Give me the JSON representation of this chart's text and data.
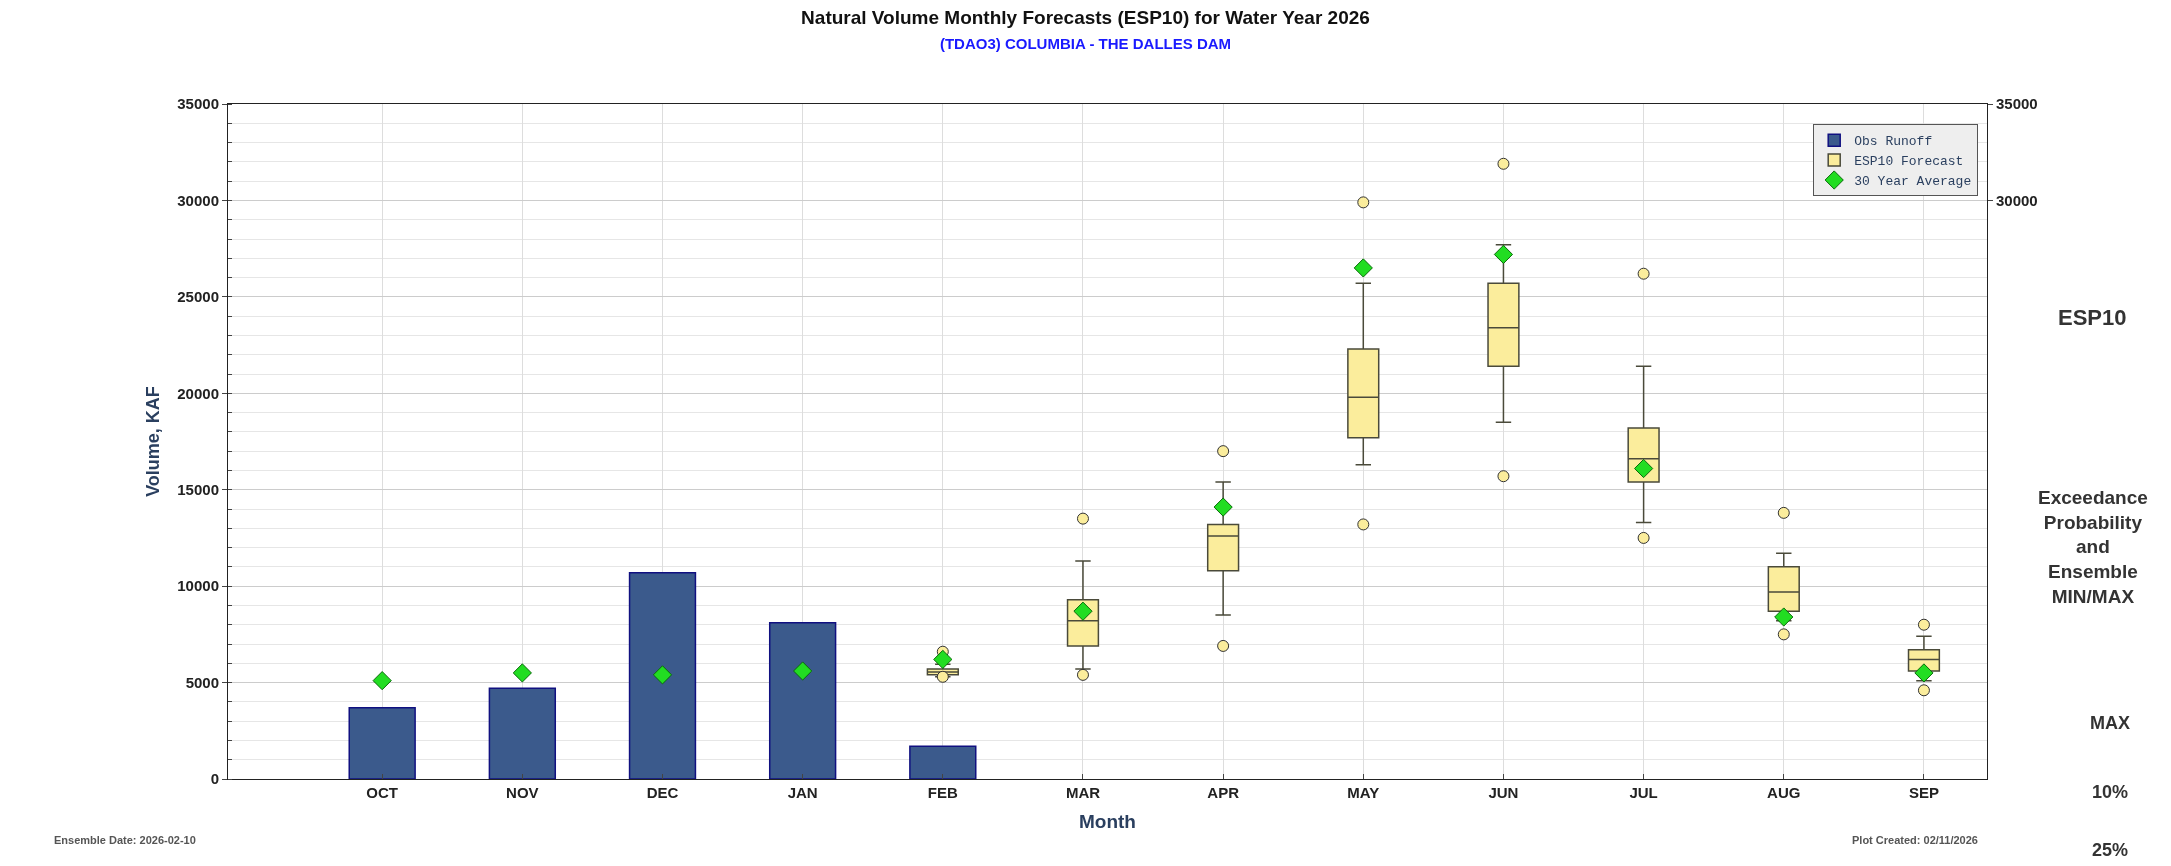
{
  "chart_data": {
    "type": "bar",
    "title": "Natural Volume Monthly Forecasts (ESP10) for Water Year 2026",
    "subtitle": "(TDAO3) COLUMBIA - THE DALLES DAM",
    "xlabel": "Month",
    "ylabel": "Volume, KAF",
    "categories": [
      "OCT",
      "NOV",
      "DEC",
      "JAN",
      "FEB",
      "MAR",
      "APR",
      "MAY",
      "JUN",
      "JUL",
      "AUG",
      "SEP"
    ],
    "series": [
      {
        "name": "Obs Runoff",
        "color": "#3b5a8c",
        "values": [
          3700,
          4700,
          10700,
          8100,
          1700,
          null,
          null,
          null,
          null,
          null,
          null,
          null
        ]
      },
      {
        "name": "ESP10 Forecast",
        "type": "box",
        "color": "#fbed9c",
        "boxes": [
          null,
          null,
          null,
          null,
          {
            "low": 5300,
            "q1": 5400,
            "median": 5550,
            "q3": 5700,
            "high": 5950,
            "outliers": [
              6600,
              5300
            ]
          },
          {
            "low": 5700,
            "q1": 6900,
            "median": 8200,
            "q3": 9300,
            "high": 11300,
            "outliers": [
              13500,
              5400
            ]
          },
          {
            "low": 8500,
            "q1": 10800,
            "median": 12600,
            "q3": 13200,
            "high": 15400,
            "outliers": [
              17000,
              6900
            ]
          },
          {
            "low": 16300,
            "q1": 17700,
            "median": 19800,
            "q3": 22300,
            "high": 25700,
            "outliers": [
              29900,
              13200
            ]
          },
          {
            "low": 18500,
            "q1": 21400,
            "median": 23400,
            "q3": 25700,
            "high": 27700,
            "outliers": [
              31900,
              15700
            ]
          },
          {
            "low": 13300,
            "q1": 15400,
            "median": 16600,
            "q3": 18200,
            "high": 21400,
            "outliers": [
              26200,
              12500
            ]
          },
          {
            "low": 8200,
            "q1": 8700,
            "median": 9700,
            "q3": 11000,
            "high": 11700,
            "outliers": [
              13800,
              7500
            ]
          },
          {
            "low": 5100,
            "q1": 5600,
            "median": 6200,
            "q3": 6700,
            "high": 7400,
            "outliers": [
              8000,
              4600
            ]
          }
        ]
      },
      {
        "name": "30 Year Average",
        "type": "scatter",
        "marker": "diamond",
        "color": "#22dd22",
        "values": [
          5100,
          5500,
          5400,
          5600,
          6200,
          8700,
          14100,
          26500,
          27200,
          16100,
          8400,
          5500
        ]
      }
    ],
    "ylim": [
      0,
      35000
    ],
    "yticks": [
      0,
      5000,
      10000,
      15000,
      20000,
      25000,
      30000,
      35000
    ],
    "y2lim": [
      0,
      35000
    ],
    "y2ticks": [
      30000,
      35000
    ],
    "grid": true,
    "legend": "top right",
    "annotations": [
      "Ensemble Date: 2026-02-10",
      "Plot Created: 02/11/2026",
      "ESP10",
      "Exceedance Probability and Ensemble MIN/MAX",
      "MAX",
      "10%",
      "25%"
    ]
  }
}
